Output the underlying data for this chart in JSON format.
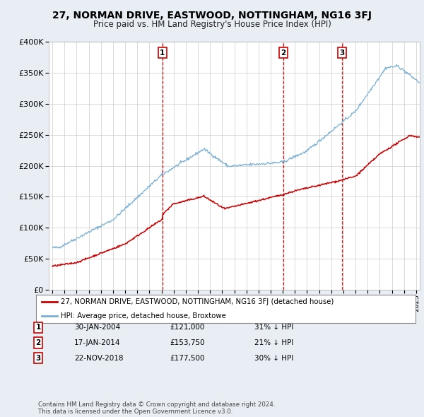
{
  "title": "27, NORMAN DRIVE, EASTWOOD, NOTTINGHAM, NG16 3FJ",
  "subtitle": "Price paid vs. HM Land Registry's House Price Index (HPI)",
  "legend_line1": "27, NORMAN DRIVE, EASTWOOD, NOTTINGHAM, NG16 3FJ (detached house)",
  "legend_line2": "HPI: Average price, detached house, Broxtowe",
  "transactions": [
    {
      "label": "1",
      "date": "30-JAN-2004",
      "price": "£121,000",
      "hpi_note": "31% ↓ HPI",
      "year": 2004.08
    },
    {
      "label": "2",
      "date": "17-JAN-2014",
      "price": "£153,750",
      "hpi_note": "21% ↓ HPI",
      "year": 2014.05
    },
    {
      "label": "3",
      "date": "22-NOV-2018",
      "price": "£177,500",
      "hpi_note": "30% ↓ HPI",
      "year": 2018.9
    }
  ],
  "red_color": "#cc0000",
  "blue_color": "#7ab0d4",
  "background_color": "#e8eef4",
  "plot_bg": "#ffffff",
  "ylim": [
    0,
    400000
  ],
  "yticks": [
    0,
    50000,
    100000,
    150000,
    200000,
    250000,
    300000,
    350000,
    400000
  ],
  "xlim_start": 1994.7,
  "xlim_end": 2025.3,
  "footer": "Contains HM Land Registry data © Crown copyright and database right 2024.\nThis data is licensed under the Open Government Licence v3.0."
}
